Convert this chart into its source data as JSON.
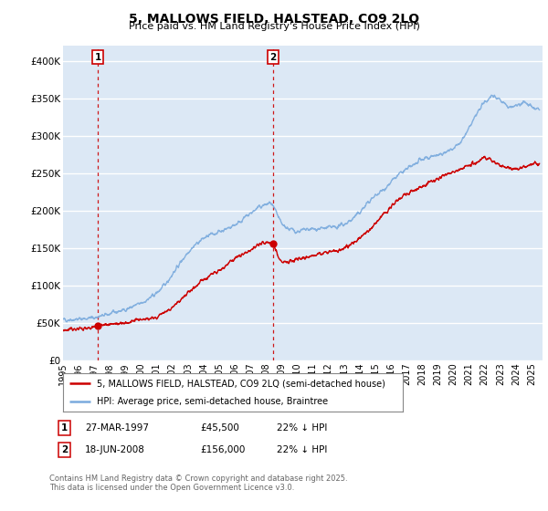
{
  "title": "5, MALLOWS FIELD, HALSTEAD, CO9 2LQ",
  "subtitle": "Price paid vs. HM Land Registry's House Price Index (HPI)",
  "ylim": [
    0,
    420000
  ],
  "xlim_start": 1995.0,
  "xlim_end": 2025.7,
  "yticks": [
    0,
    50000,
    100000,
    150000,
    200000,
    250000,
    300000,
    350000,
    400000
  ],
  "ytick_labels": [
    "£0",
    "£50K",
    "£100K",
    "£150K",
    "£200K",
    "£250K",
    "£300K",
    "£350K",
    "£400K"
  ],
  "purchase1_date": 1997.22,
  "purchase1_price": 45500,
  "purchase2_date": 2008.46,
  "purchase2_price": 156000,
  "sale_color": "#cc0000",
  "hpi_color": "#7aaadd",
  "background_color": "#dce8f5",
  "grid_color": "#ffffff",
  "legend_label_sale": "5, MALLOWS FIELD, HALSTEAD, CO9 2LQ (semi-detached house)",
  "legend_label_hpi": "HPI: Average price, semi-detached house, Braintree",
  "table_row1": [
    "1",
    "27-MAR-1997",
    "£45,500",
    "22% ↓ HPI"
  ],
  "table_row2": [
    "2",
    "18-JUN-2008",
    "£156,000",
    "22% ↓ HPI"
  ],
  "footnote": "Contains HM Land Registry data © Crown copyright and database right 2025.\nThis data is licensed under the Open Government Licence v3.0.",
  "xtick_years": [
    1995,
    1996,
    1997,
    1998,
    1999,
    2000,
    2001,
    2002,
    2003,
    2004,
    2005,
    2006,
    2007,
    2008,
    2009,
    2010,
    2011,
    2012,
    2013,
    2014,
    2015,
    2016,
    2017,
    2018,
    2019,
    2020,
    2021,
    2022,
    2023,
    2024,
    2025
  ]
}
